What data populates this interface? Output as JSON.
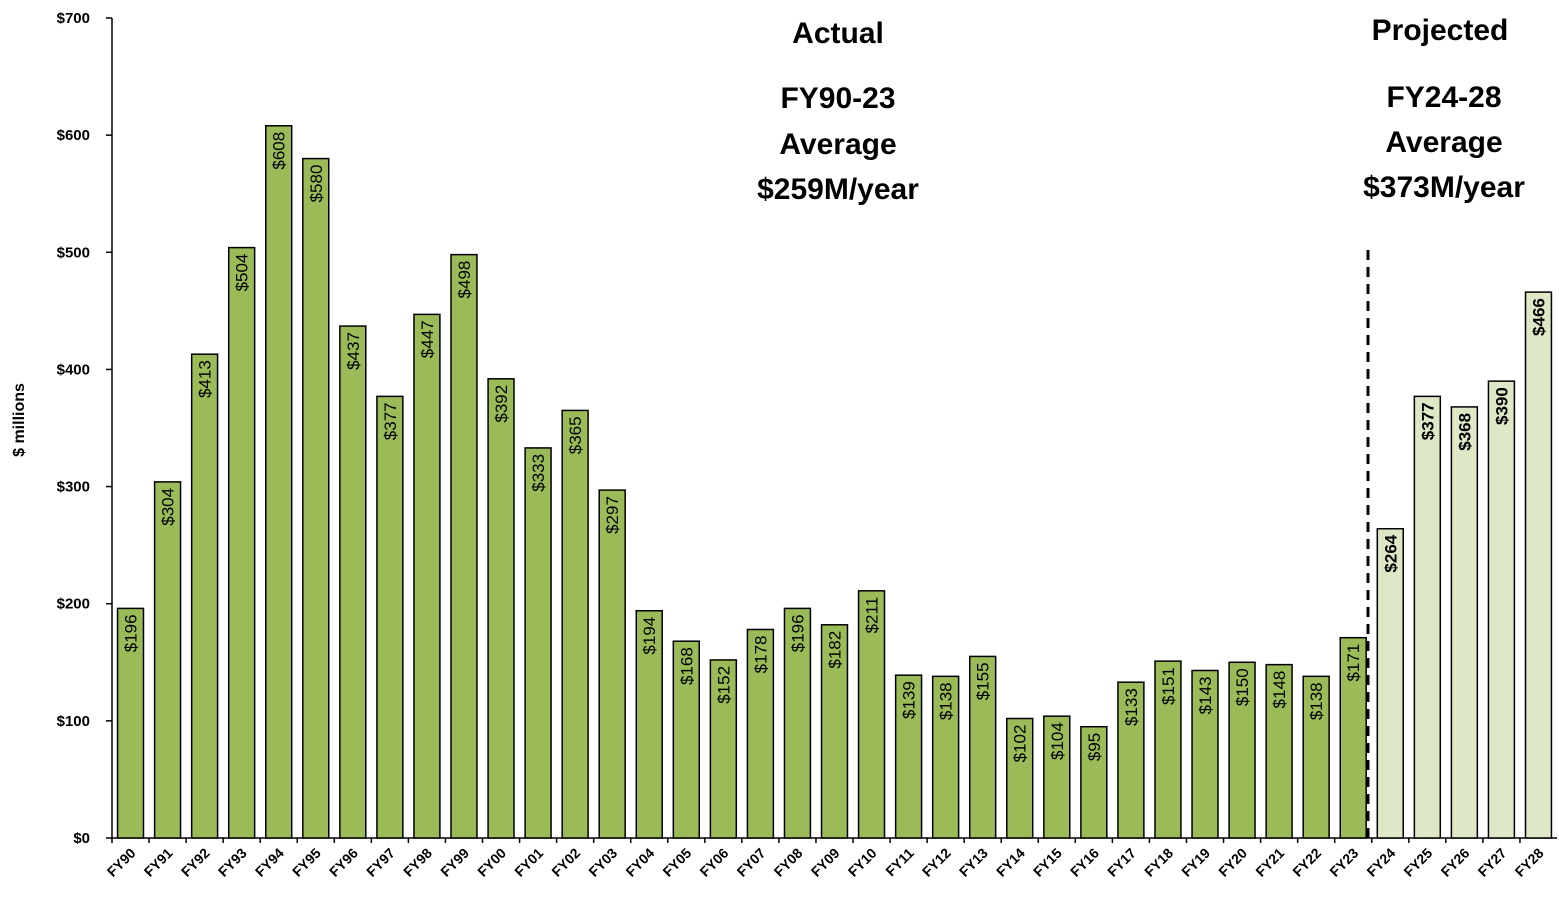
{
  "chart_data": {
    "type": "bar",
    "ylabel": "$ millions",
    "categories": [
      "FY90",
      "FY91",
      "FY92",
      "FY93",
      "FY94",
      "FY95",
      "FY96",
      "FY97",
      "FY98",
      "FY99",
      "FY00",
      "FY01",
      "FY02",
      "FY03",
      "FY04",
      "FY05",
      "FY06",
      "FY07",
      "FY08",
      "FY09",
      "FY10",
      "FY11",
      "FY12",
      "FY13",
      "FY14",
      "FY15",
      "FY16",
      "FY17",
      "FY18",
      "FY19",
      "FY20",
      "FY21",
      "FY22",
      "FY23",
      "FY24",
      "FY25",
      "FY26",
      "FY27",
      "FY28"
    ],
    "values": [
      196,
      304,
      413,
      504,
      608,
      580,
      437,
      377,
      447,
      498,
      392,
      333,
      365,
      297,
      194,
      168,
      152,
      178,
      196,
      182,
      211,
      139,
      138,
      155,
      102,
      104,
      95,
      133,
      151,
      143,
      150,
      148,
      138,
      171,
      264,
      377,
      368,
      390,
      466
    ],
    "value_labels": [
      "$196",
      "$304",
      "$413",
      "$504",
      "$608",
      "$580",
      "$437",
      "$377",
      "$447",
      "$498",
      "$392",
      "$333",
      "$365",
      "$297",
      "$194",
      "$168",
      "$152",
      "$178",
      "$196",
      "$182",
      "$211",
      "$139",
      "$138",
      "$155",
      "$102",
      "$104",
      "$95",
      "$133",
      "$151",
      "$143",
      "$150",
      "$148",
      "$138",
      "$171",
      "$264",
      "$377",
      "$368",
      "$390",
      "$466"
    ],
    "colors": [
      "#9bbb59",
      "#9bbb59",
      "#9bbb59",
      "#9bbb59",
      "#9bbb59",
      "#9bbb59",
      "#9bbb59",
      "#9bbb59",
      "#9bbb59",
      "#9bbb59",
      "#9bbb59",
      "#9bbb59",
      "#9bbb59",
      "#9bbb59",
      "#9bbb59",
      "#9bbb59",
      "#9bbb59",
      "#9bbb59",
      "#9bbb59",
      "#9bbb59",
      "#9bbb59",
      "#9bbb59",
      "#9bbb59",
      "#9bbb59",
      "#9bbb59",
      "#9bbb59",
      "#9bbb59",
      "#9bbb59",
      "#9bbb59",
      "#9bbb59",
      "#9bbb59",
      "#9bbb59",
      "#9bbb59",
      "#9bbb59",
      "#dfe8c6",
      "#dfe8c6",
      "#dfe8c6",
      "#dfe8c6",
      "#dfe8c6"
    ],
    "ylim": [
      0,
      700
    ],
    "yticks": [
      {
        "value": 0,
        "label": "$0"
      },
      {
        "value": 100,
        "label": "$100"
      },
      {
        "value": 200,
        "label": "$200"
      },
      {
        "value": 300,
        "label": "$300"
      },
      {
        "value": 400,
        "label": "$400"
      },
      {
        "value": 500,
        "label": "$500"
      },
      {
        "value": 600,
        "label": "$600"
      },
      {
        "value": 700,
        "label": "$700"
      }
    ],
    "annotations": [
      "Actual",
      "FY90-23",
      "Average",
      "$259M/year",
      "Projected",
      "FY24-28",
      "Average",
      "$373M/year"
    ]
  }
}
